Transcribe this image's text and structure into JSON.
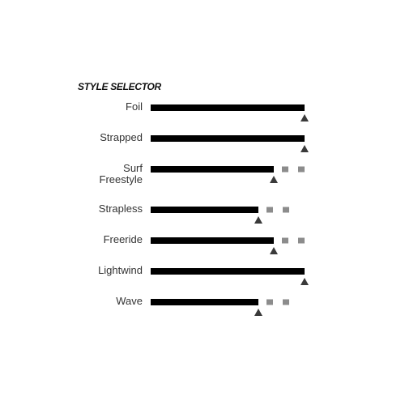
{
  "title": "STYLE SELECTOR",
  "colors": {
    "bar": "#000000",
    "empty_segment": "#8c8c8c",
    "marker": "#3a3a3a",
    "label": "#333333"
  },
  "chart_data": {
    "type": "bar",
    "orientation": "horizontal",
    "title": "STYLE SELECTOR",
    "scale_max": 10,
    "categories": [
      [
        "Foil"
      ],
      [
        "Strapped"
      ],
      [
        "Surf",
        "Freestyle"
      ],
      [
        "Strapless"
      ],
      [
        "Freeride"
      ],
      [
        "Lightwind"
      ],
      [
        "Wave"
      ]
    ],
    "values": [
      10,
      10,
      8,
      7,
      8,
      10,
      7
    ]
  }
}
